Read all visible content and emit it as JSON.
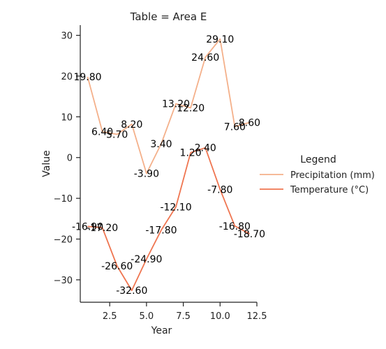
{
  "chart_data": {
    "type": "line",
    "title": "Table = Area E",
    "xlabel": "Year",
    "ylabel": "Value",
    "xlim": [
      0.5,
      12.5
    ],
    "ylim": [
      -35.5,
      32.5
    ],
    "xticks": [
      2.5,
      5.0,
      7.5,
      10.0,
      12.5
    ],
    "xtick_labels": [
      "2.5",
      "5.0",
      "7.5",
      "10.0",
      "12.5"
    ],
    "yticks": [
      -30,
      -20,
      -10,
      0,
      10,
      20,
      30
    ],
    "ytick_labels": [
      "−30",
      "−20",
      "−10",
      "0",
      "10",
      "20",
      "30"
    ],
    "grid": false,
    "legend": {
      "title": "Legend",
      "placement": "right"
    },
    "x": [
      1,
      2,
      3,
      4,
      5,
      6,
      7,
      8,
      9,
      10,
      11,
      12
    ],
    "series": [
      {
        "name": "Precipitation (mm)",
        "color": "#f4b08a",
        "values": [
          19.8,
          6.4,
          5.7,
          8.2,
          -3.9,
          3.4,
          13.2,
          12.2,
          24.6,
          29.1,
          7.6,
          8.6
        ],
        "labels": [
          "19.80",
          "6.40",
          "5.70",
          "8.20",
          "-3.90",
          "3.40",
          "13.20",
          "12.20",
          "24.60",
          "29.10",
          "7.60",
          "8.60"
        ]
      },
      {
        "name": "Temperature (°C)",
        "color": "#ef7550",
        "values": [
          -16.9,
          -17.2,
          -26.6,
          -32.6,
          -24.9,
          -17.8,
          -12.1,
          1.2,
          2.4,
          -7.8,
          -16.8,
          -18.7
        ],
        "labels": [
          "-16.90",
          "-17.20",
          "-26.60",
          "-32.60",
          "-24.90",
          "-17.80",
          "-12.10",
          "1.20",
          "2.40",
          "-7.80",
          "-16.80",
          "-18.70"
        ]
      }
    ]
  }
}
